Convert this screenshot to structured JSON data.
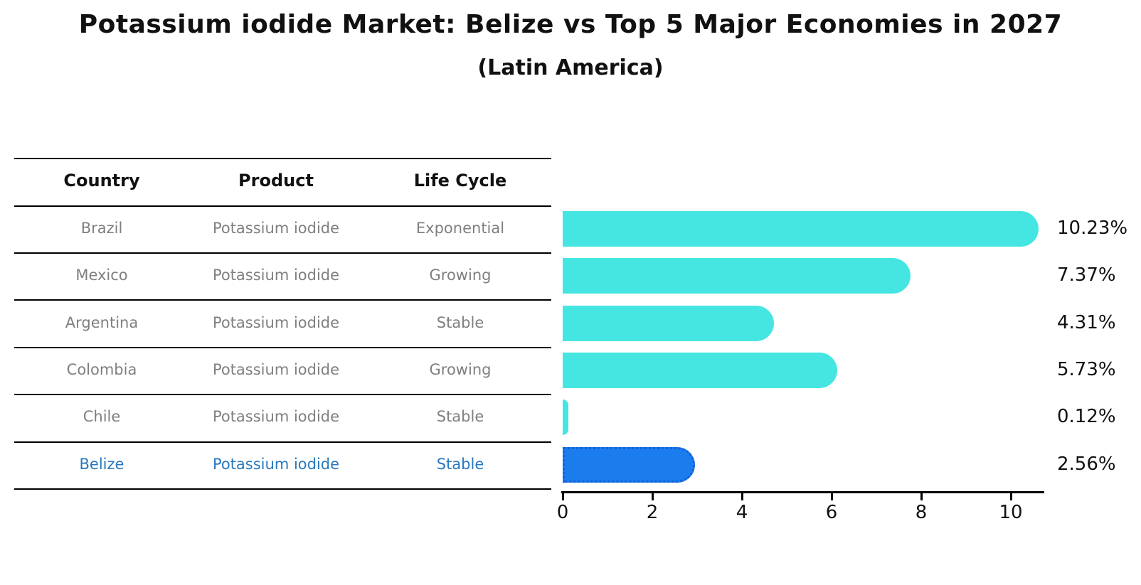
{
  "title": "Potassium iodide Market: Belize vs Top 5 Major Economies in 2027",
  "subtitle": "(Latin America)",
  "table": {
    "headers": [
      "Country",
      "Product",
      "Life Cycle"
    ],
    "rows": [
      {
        "country": "Brazil",
        "product": "Potassium iodide",
        "life_cycle": "Exponential",
        "highlight": false
      },
      {
        "country": "Mexico",
        "product": "Potassium iodide",
        "life_cycle": "Growing",
        "highlight": false
      },
      {
        "country": "Argentina",
        "product": "Potassium iodide",
        "life_cycle": "Stable",
        "highlight": false
      },
      {
        "country": "Colombia",
        "product": "Potassium iodide",
        "life_cycle": "Growing",
        "highlight": false
      },
      {
        "country": "Chile",
        "product": "Potassium iodide",
        "life_cycle": "Stable",
        "highlight": false
      },
      {
        "country": "Belize",
        "product": "Potassium iodide",
        "life_cycle": "Stable",
        "highlight": true
      }
    ]
  },
  "chart_data": {
    "type": "bar",
    "orientation": "horizontal",
    "title": "Potassium iodide Market: Belize vs Top 5 Major Economies in 2027",
    "subtitle": "(Latin America)",
    "categories": [
      "Brazil",
      "Mexico",
      "Argentina",
      "Colombia",
      "Chile",
      "Belize"
    ],
    "values": [
      10.23,
      7.37,
      4.31,
      5.73,
      0.12,
      2.56
    ],
    "value_labels": [
      "10.23%",
      "7.37%",
      "4.31%",
      "5.73%",
      "0.12%",
      "2.56%"
    ],
    "highlight_index": 5,
    "x_ticks": [
      0,
      2,
      4,
      6,
      8,
      10
    ],
    "xlim": [
      0,
      10.75
    ],
    "grid": false,
    "legend": "none",
    "colors": {
      "bar": "#45e6e1",
      "highlight_bar": "#1b7ced",
      "highlight_edge": "#0f62d9",
      "highlight_text": "#2878be",
      "row_text": "#7f7f7f",
      "header_text": "#111111",
      "axis": "#000000"
    }
  }
}
